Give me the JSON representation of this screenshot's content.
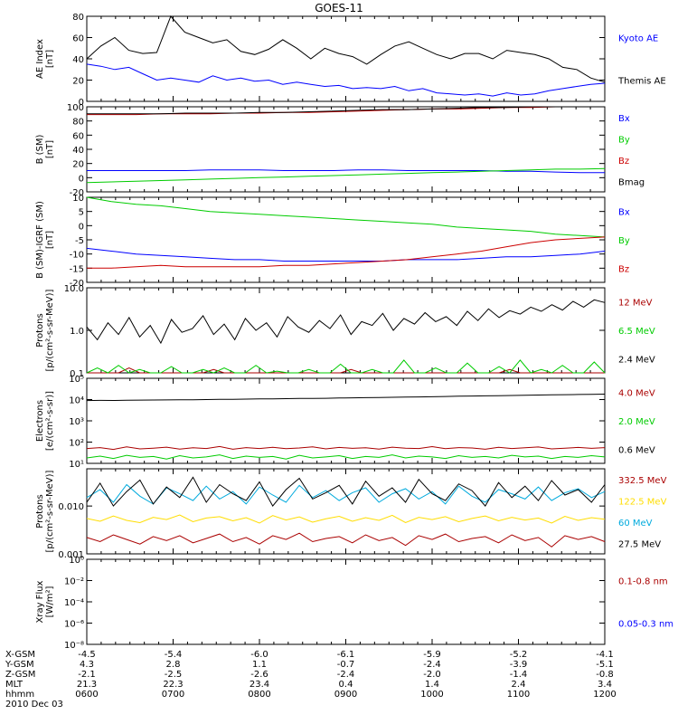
{
  "title": "GOES-11",
  "chart_data": [
    {
      "type": "line",
      "ylabel": "AE Index\n[nT]",
      "ylim": [
        0,
        80
      ],
      "yscale": "linear",
      "yticks": [
        "0",
        "20",
        "40",
        "60",
        "80"
      ],
      "yticks_values": [
        0,
        20,
        40,
        60,
        80
      ],
      "series": [
        {
          "name": "Kyoto AE",
          "color": "#0000ff",
          "values": [
            35,
            33,
            30,
            32,
            26,
            20,
            22,
            20,
            18,
            24,
            20,
            22,
            19,
            20,
            16,
            18,
            16,
            14,
            15,
            12,
            13,
            12,
            14,
            10,
            12,
            8,
            7,
            6,
            7,
            5,
            8,
            6,
            7,
            10,
            12,
            14,
            16,
            17
          ]
        },
        {
          "name": "Themis AE",
          "color": "#000000",
          "values": [
            40,
            52,
            60,
            48,
            45,
            46,
            80,
            65,
            60,
            55,
            58,
            47,
            44,
            49,
            58,
            50,
            40,
            50,
            45,
            42,
            35,
            44,
            52,
            56,
            50,
            44,
            40,
            45,
            45,
            40,
            48,
            46,
            44,
            40,
            32,
            30,
            22,
            18
          ]
        }
      ]
    },
    {
      "type": "line",
      "ylabel": "B (SM)\n[nT]",
      "ylim": [
        -20,
        100
      ],
      "yscale": "linear",
      "yticks": [
        "-20",
        "0",
        "20",
        "40",
        "60",
        "80",
        "100"
      ],
      "yticks_values": [
        -20,
        0,
        20,
        40,
        60,
        80,
        100
      ],
      "series": [
        {
          "name": "Bx",
          "color": "#0000ff",
          "values": [
            10,
            10,
            10,
            10,
            10,
            11,
            11,
            11,
            10,
            10,
            10,
            11,
            11,
            10,
            10,
            10,
            10,
            9,
            9,
            8,
            7,
            7
          ]
        },
        {
          "name": "By",
          "color": "#00cc00",
          "values": [
            -7,
            -6,
            -5,
            -4,
            -3,
            -2,
            -1,
            0,
            1,
            2,
            3,
            4,
            5,
            6,
            7,
            8,
            9,
            10,
            11,
            12,
            12,
            13
          ]
        },
        {
          "name": "Bz",
          "color": "#cc0000",
          "values": [
            89,
            89,
            89,
            90,
            90,
            90,
            91,
            91,
            92,
            92,
            93,
            94,
            95,
            96,
            97,
            97,
            98,
            99,
            99,
            100,
            100,
            100
          ]
        },
        {
          "name": "Bmag",
          "color": "#000000",
          "values": [
            90,
            90,
            90,
            90,
            91,
            91,
            91,
            92,
            92,
            93,
            94,
            95,
            96,
            96,
            97,
            98,
            99,
            99,
            100,
            100,
            100,
            100
          ]
        }
      ]
    },
    {
      "type": "line",
      "ylabel": "B (SM)-IGRF (SM)\n[nT]",
      "ylim": [
        -20,
        10
      ],
      "yscale": "linear",
      "yticks": [
        "-20",
        "-15",
        "-10",
        "-5",
        "0",
        "5",
        "10"
      ],
      "yticks_values": [
        -20,
        -15,
        -10,
        -5,
        0,
        5,
        10
      ],
      "series": [
        {
          "name": "Bx",
          "color": "#0000ff",
          "values": [
            -8,
            -9,
            -10,
            -10.5,
            -11,
            -11.5,
            -12,
            -12,
            -12.5,
            -12.5,
            -12.5,
            -12.5,
            -12.5,
            -12,
            -12,
            -12,
            -11.5,
            -11,
            -11,
            -10.5,
            -10,
            -9
          ]
        },
        {
          "name": "By",
          "color": "#00cc00",
          "values": [
            10,
            8.5,
            7.5,
            7,
            6,
            5,
            4.5,
            4,
            3.5,
            3,
            2.5,
            2,
            1.5,
            1,
            0.5,
            -0.5,
            -1,
            -1.5,
            -2,
            -3,
            -3.5,
            -4
          ]
        },
        {
          "name": "Bz",
          "color": "#cc0000",
          "values": [
            -15,
            -15,
            -14.5,
            -14,
            -14.5,
            -14.5,
            -14.5,
            -14.5,
            -14,
            -14,
            -13.5,
            -13,
            -12.5,
            -12,
            -11,
            -10,
            -9,
            -7.5,
            -6,
            -5,
            -4.5,
            -4
          ]
        }
      ]
    },
    {
      "type": "line",
      "ylabel": "Protons\n[p/(cm²-s-sr-MeV)]",
      "ylim": [
        0.1,
        10
      ],
      "yscale": "log",
      "yticks": [
        "0.1",
        "1.0",
        "10.0"
      ],
      "yticks_values": [
        0.1,
        1,
        10
      ],
      "series": [
        {
          "name": "12 MeV",
          "color": "#aa0000",
          "values": [
            0.1,
            0.1,
            0.1,
            0.1,
            0.13,
            0.1,
            0.1,
            0.1,
            0.1,
            0.1,
            0.1,
            0.1,
            0.12,
            0.1,
            0.1,
            0.1,
            0.1,
            0.1,
            0.1,
            0.1,
            0.1,
            0.1,
            0.1,
            0.1,
            0.1,
            0.12,
            0.1,
            0.1,
            0.1,
            0.1,
            0.1,
            0.1,
            0.1,
            0.1,
            0.1,
            0.1,
            0.1,
            0.1,
            0.1,
            0.1,
            0.12,
            0.1,
            0.1,
            0.1,
            0.1,
            0.1,
            0.1,
            0.1,
            0.1,
            0.1
          ]
        },
        {
          "name": "6.5 MeV",
          "color": "#00cc00",
          "values": [
            0.1,
            0.13,
            0.1,
            0.15,
            0.1,
            0.12,
            0.1,
            0.1,
            0.14,
            0.1,
            0.1,
            0.12,
            0.1,
            0.13,
            0.1,
            0.1,
            0.15,
            0.1,
            0.11,
            0.1,
            0.1,
            0.12,
            0.1,
            0.1,
            0.16,
            0.1,
            0.1,
            0.12,
            0.1,
            0.1,
            0.2,
            0.1,
            0.1,
            0.13,
            0.1,
            0.1,
            0.17,
            0.1,
            0.1,
            0.14,
            0.1,
            0.2,
            0.1,
            0.12,
            0.1,
            0.15,
            0.1,
            0.1,
            0.18,
            0.1
          ]
        },
        {
          "name": "2.4 MeV",
          "color": "#000000",
          "values": [
            1.2,
            0.6,
            1.5,
            0.8,
            2.0,
            0.7,
            1.3,
            0.5,
            1.8,
            0.9,
            1.1,
            2.2,
            0.8,
            1.4,
            0.6,
            1.9,
            1.0,
            1.5,
            0.7,
            2.1,
            1.2,
            0.9,
            1.7,
            1.1,
            2.3,
            0.8,
            1.6,
            1.3,
            2.5,
            1.0,
            1.9,
            1.4,
            2.6,
            1.6,
            2.1,
            1.3,
            2.8,
            1.7,
            3.2,
            2.0,
            2.9,
            2.4,
            3.5,
            2.8,
            4.0,
            3.0,
            4.8,
            3.5,
            5.2,
            4.5
          ]
        }
      ]
    },
    {
      "type": "line",
      "ylabel": "Electrons\n[e/(cm²-s-sr)]",
      "ylim": [
        10,
        100000
      ],
      "yscale": "log",
      "yticks": [
        "10¹",
        "10²",
        "10³",
        "10⁴",
        "10⁵"
      ],
      "yticks_values": [
        10,
        100,
        1000,
        10000,
        100000
      ],
      "series": [
        {
          "name": "4.0 MeV",
          "color": "#aa0000",
          "values": [
            50,
            55,
            45,
            60,
            48,
            52,
            58,
            47,
            54,
            50,
            62,
            46,
            55,
            50,
            57,
            49,
            53,
            60,
            48,
            56,
            51,
            54,
            47,
            58,
            52,
            50,
            61,
            49,
            55,
            53,
            46,
            57,
            50,
            54,
            59,
            48,
            52,
            56,
            51,
            55
          ]
        },
        {
          "name": "2.0 MeV",
          "color": "#00cc00",
          "values": [
            18,
            22,
            17,
            24,
            19,
            21,
            16,
            23,
            18,
            20,
            25,
            17,
            22,
            19,
            21,
            16,
            24,
            18,
            20,
            23,
            17,
            21,
            19,
            25,
            18,
            22,
            20,
            17,
            23,
            19,
            21,
            18,
            24,
            20,
            22,
            17,
            21,
            19,
            23,
            20
          ]
        },
        {
          "name": "0.6 MeV",
          "color": "#000000",
          "values": [
            9000,
            9200,
            9100,
            9300,
            9400,
            9500,
            9600,
            9700,
            9800,
            10000,
            10200,
            10300,
            10500,
            10700,
            10800,
            11000,
            11200,
            11400,
            11500,
            11800,
            12000,
            12300,
            12500,
            12800,
            13000,
            13300,
            13600,
            14000,
            14300,
            14600,
            15000,
            15300,
            15600,
            16000,
            16300,
            16600,
            17000,
            17300,
            17600,
            18000
          ]
        }
      ]
    },
    {
      "type": "line",
      "ylabel": "Protons\n[p/(cm²-s-sr-MeV)]",
      "ylim": [
        0.001,
        0.06
      ],
      "yscale": "log",
      "yticks": [
        "0.001",
        "0.010"
      ],
      "yticks_values": [
        0.001,
        0.01
      ],
      "series": [
        {
          "name": "332.5 MeV",
          "color": "#aa0000",
          "values": [
            0.0022,
            0.0018,
            0.0025,
            0.002,
            0.0016,
            0.0023,
            0.0019,
            0.0024,
            0.0017,
            0.0021,
            0.0026,
            0.0018,
            0.0022,
            0.0016,
            0.0024,
            0.002,
            0.0027,
            0.0018,
            0.0021,
            0.0023,
            0.0017,
            0.0025,
            0.0019,
            0.0022,
            0.0015,
            0.0024,
            0.002,
            0.0026,
            0.0018,
            0.0021,
            0.0023,
            0.0017,
            0.0025,
            0.0019,
            0.0022,
            0.0014,
            0.0024,
            0.002,
            0.0023,
            0.0018
          ]
        },
        {
          "name": "122.5 MeV",
          "color": "#ffdd00",
          "values": [
            0.0055,
            0.0048,
            0.0062,
            0.005,
            0.0045,
            0.0058,
            0.0052,
            0.0065,
            0.0047,
            0.0056,
            0.006,
            0.0049,
            0.0057,
            0.0044,
            0.0063,
            0.0051,
            0.0059,
            0.0046,
            0.0054,
            0.0061,
            0.0048,
            0.0057,
            0.005,
            0.0064,
            0.0045,
            0.0058,
            0.0052,
            0.006,
            0.0047,
            0.0055,
            0.0062,
            0.0049,
            0.0058,
            0.0051,
            0.0056,
            0.0044,
            0.0061,
            0.005,
            0.0057,
            0.0053
          ]
        },
        {
          "name": "60 MeV",
          "color": "#00aadd",
          "values": [
            0.015,
            0.022,
            0.012,
            0.028,
            0.016,
            0.011,
            0.024,
            0.018,
            0.013,
            0.026,
            0.014,
            0.02,
            0.011,
            0.025,
            0.017,
            0.012,
            0.027,
            0.015,
            0.021,
            0.013,
            0.019,
            0.024,
            0.012,
            0.018,
            0.023,
            0.014,
            0.02,
            0.011,
            0.026,
            0.016,
            0.012,
            0.022,
            0.018,
            0.014,
            0.025,
            0.013,
            0.019,
            0.023,
            0.015,
            0.02
          ]
        },
        {
          "name": "27.5 MeV",
          "color": "#000000",
          "values": [
            0.012,
            0.03,
            0.01,
            0.02,
            0.035,
            0.011,
            0.025,
            0.015,
            0.04,
            0.012,
            0.028,
            0.018,
            0.013,
            0.032,
            0.01,
            0.022,
            0.038,
            0.014,
            0.019,
            0.027,
            0.011,
            0.033,
            0.016,
            0.024,
            0.012,
            0.036,
            0.018,
            0.013,
            0.029,
            0.021,
            0.01,
            0.031,
            0.015,
            0.026,
            0.013,
            0.034,
            0.017,
            0.022,
            0.012,
            0.028
          ]
        }
      ]
    },
    {
      "type": "line",
      "ylabel": "Xray Flux\n[W/m²]",
      "ylim": [
        1e-08,
        1
      ],
      "yscale": "log",
      "yticks": [
        "10⁻⁸",
        "10⁻⁶",
        "10⁻⁴",
        "10⁻²",
        "10⁰"
      ],
      "yticks_values": [
        1e-08,
        1e-06,
        0.0001,
        0.01,
        1
      ],
      "series": [
        {
          "name": "0.1-0.8 nm",
          "color": "#aa0000",
          "values": []
        },
        {
          "name": "0.05-0.3 nm",
          "color": "#0000ff",
          "values": []
        }
      ]
    }
  ],
  "x_axis": {
    "ticks": [
      "0600",
      "0700",
      "0800",
      "0900",
      "1000",
      "1100",
      "1200"
    ],
    "rows": [
      {
        "label": "X-GSM",
        "values": [
          "-4.5",
          "-5.4",
          "-6.0",
          "-6.1",
          "-5.9",
          "-5.2",
          "-4.1"
        ]
      },
      {
        "label": "Y-GSM",
        "values": [
          "4.3",
          "2.8",
          "1.1",
          "-0.7",
          "-2.4",
          "-3.9",
          "-5.1"
        ]
      },
      {
        "label": "Z-GSM",
        "values": [
          "-2.1",
          "-2.5",
          "-2.6",
          "-2.4",
          "-2.0",
          "-1.4",
          "-0.8"
        ]
      },
      {
        "label": "MLT",
        "values": [
          "21.3",
          "22.3",
          "23.4",
          "0.4",
          "1.4",
          "2.4",
          "3.4"
        ]
      },
      {
        "label": "hhmm",
        "values": [
          "0600",
          "0700",
          "0800",
          "0900",
          "1000",
          "1100",
          "1200"
        ]
      }
    ],
    "date": "2010 Dec 03"
  }
}
